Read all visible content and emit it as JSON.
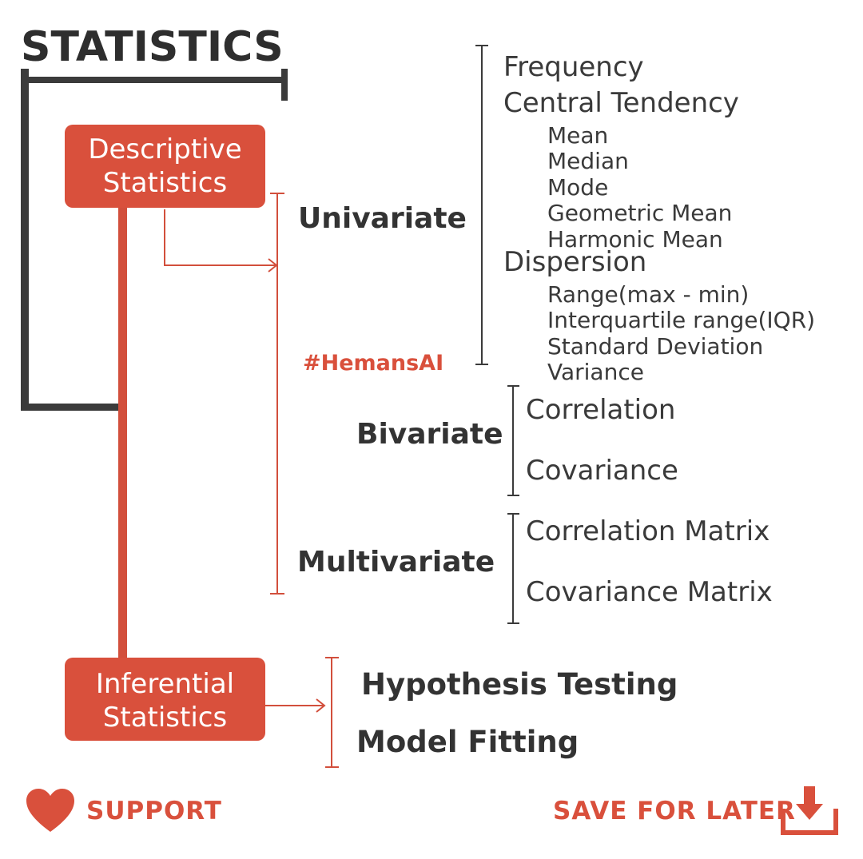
{
  "title": "STATISTICS",
  "descriptive": {
    "line1": "Descriptive",
    "line2": "Statistics"
  },
  "inferential": {
    "line1": "Inferential",
    "line2": "Statistics"
  },
  "univariate": {
    "label": "Univariate",
    "frequency": "Frequency",
    "central_tendency": "Central Tendency",
    "central_items": [
      "Mean",
      "Median",
      "Mode",
      "Geometric Mean",
      "Harmonic Mean"
    ],
    "dispersion": "Dispersion",
    "dispersion_items": [
      "Range(max - min)",
      "Interquartile range(IQR)",
      "Standard Deviation",
      "Variance"
    ]
  },
  "bivariate": {
    "label": "Bivariate",
    "items": [
      "Correlation",
      "Covariance"
    ]
  },
  "multivariate": {
    "label": "Multivariate",
    "items": [
      "Correlation Matrix",
      "Covariance Matrix"
    ]
  },
  "inferential_items": [
    "Hypothesis Testing",
    "Model Fitting"
  ],
  "hashtag": "#HemansAI",
  "footer": {
    "support": "SUPPORT",
    "save": "SAVE FOR LATER"
  },
  "colors": {
    "accent": "#d9503c",
    "dark": "#3b3b3b"
  },
  "icons": {
    "support": "heart-icon",
    "save": "download-icon"
  }
}
